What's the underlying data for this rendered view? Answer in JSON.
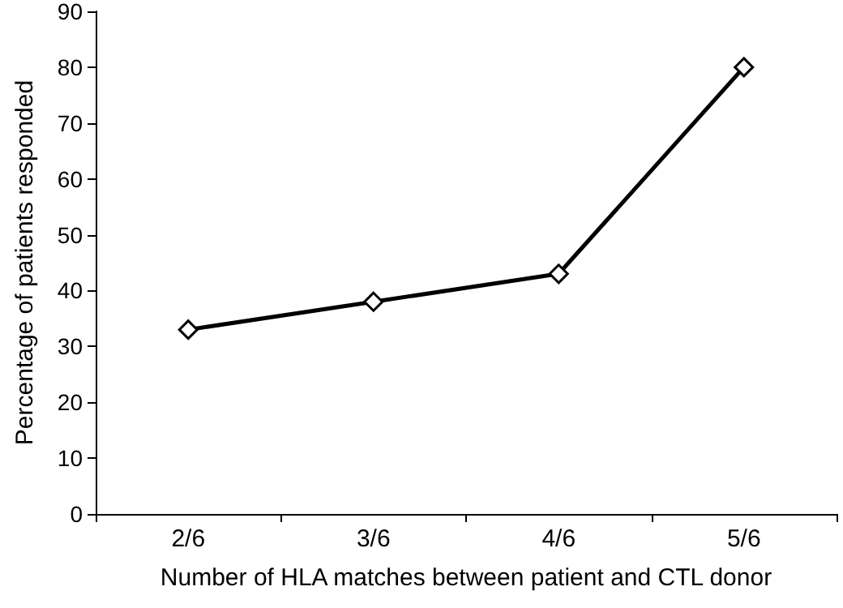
{
  "chart_data": {
    "type": "line",
    "xlabel": "Number of HLA matches between patient and CTL donor",
    "ylabel": "Percentage of patients responded",
    "categories": [
      "2/6",
      "3/6",
      "4/6",
      "5/6"
    ],
    "series": [
      {
        "color": "#000000",
        "values": [
          33,
          38,
          43,
          80
        ]
      }
    ],
    "ylim": [
      0,
      90
    ],
    "yticks": [
      0,
      10,
      20,
      30,
      40,
      50,
      60,
      70,
      80,
      90
    ],
    "grid": false,
    "marker": "diamond",
    "line_style": "solid"
  }
}
